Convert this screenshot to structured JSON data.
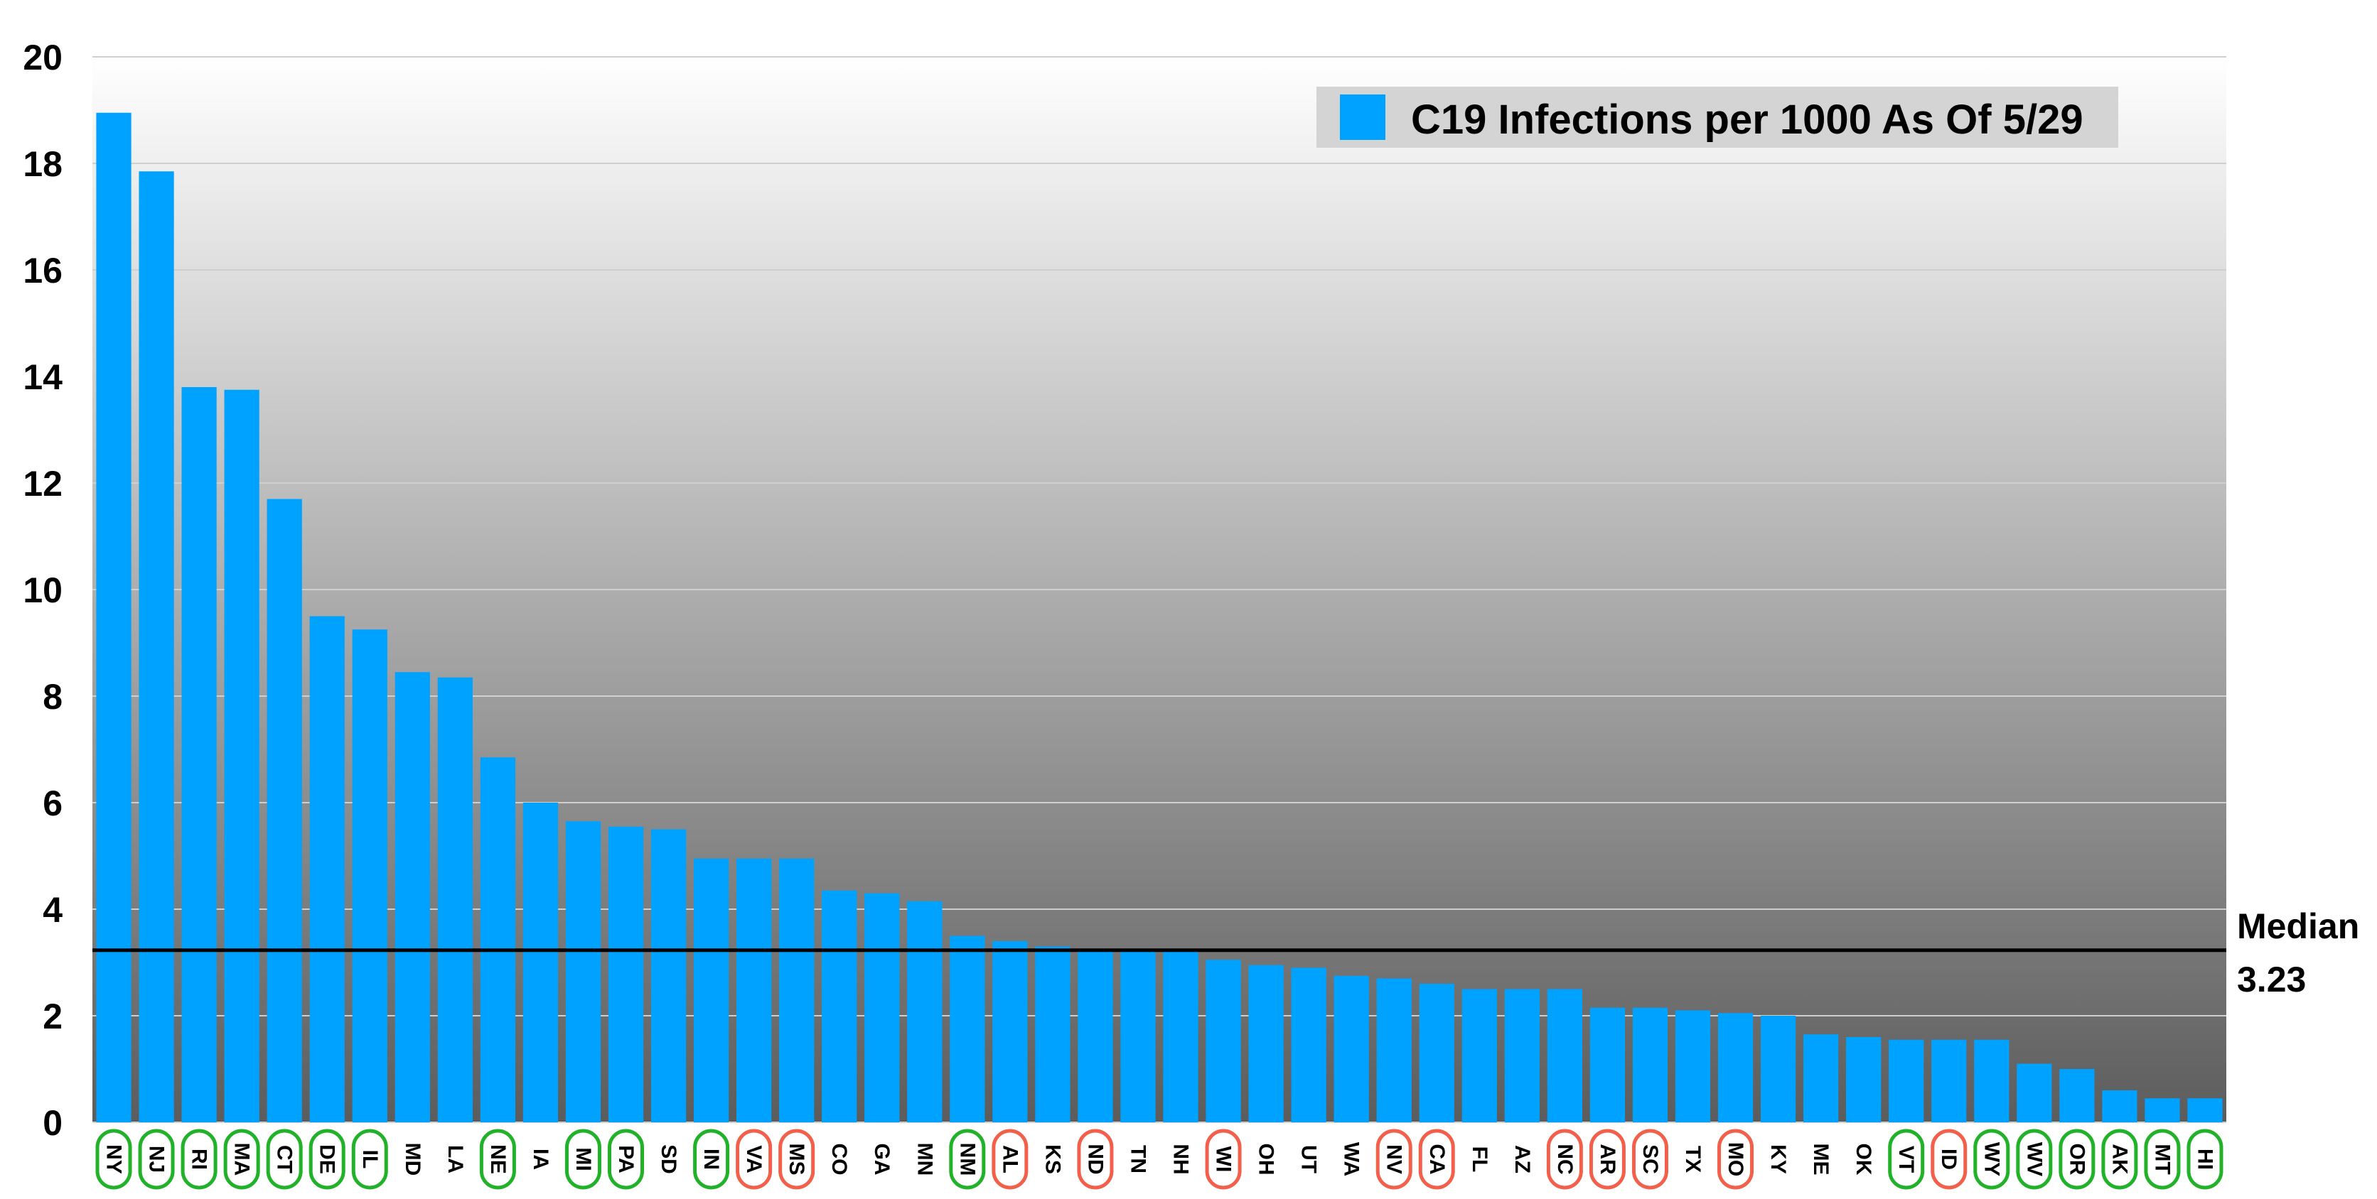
{
  "chart_data": {
    "type": "bar",
    "title": "",
    "xlabel": "",
    "ylabel": "",
    "ylim": [
      0,
      20
    ],
    "yticks": [
      0,
      2,
      4,
      6,
      8,
      10,
      12,
      14,
      16,
      18,
      20
    ],
    "grid": true,
    "legend": {
      "label": "C19 Infections per 1000 As Of 5/29",
      "placement": "top-right"
    },
    "bar_color": "#00A2FF",
    "colors": {
      "circle_green": "#22B22A",
      "circle_red": "#F2604B",
      "median_line": "#000000"
    },
    "median": {
      "label": "Median",
      "value_label": "3.23",
      "value": 3.23
    },
    "categories": [
      "NY",
      "NJ",
      "RI",
      "MA",
      "CT",
      "DE",
      "IL",
      "MD",
      "LA",
      "NE",
      "IA",
      "MI",
      "PA",
      "SD",
      "IN",
      "VA",
      "MS",
      "CO",
      "GA",
      "MN",
      "NM",
      "AL",
      "KS",
      "ND",
      "TN",
      "NH",
      "WI",
      "OH",
      "UT",
      "WA",
      "NV",
      "CA",
      "FL",
      "AZ",
      "NC",
      "AR",
      "SC",
      "TX",
      "MO",
      "KY",
      "ME",
      "OK",
      "VT",
      "ID",
      "WY",
      "WV",
      "OR",
      "AK",
      "MT",
      "HI"
    ],
    "values": [
      18.95,
      17.85,
      13.8,
      13.75,
      11.7,
      9.5,
      9.25,
      8.45,
      8.35,
      6.85,
      6.0,
      5.65,
      5.55,
      5.5,
      4.95,
      4.95,
      4.95,
      4.35,
      4.3,
      4.15,
      3.5,
      3.4,
      3.3,
      3.25,
      3.2,
      3.2,
      3.05,
      2.95,
      2.9,
      2.75,
      2.7,
      2.6,
      2.5,
      2.5,
      2.5,
      2.15,
      2.15,
      2.1,
      2.05,
      2.0,
      1.65,
      1.6,
      1.55,
      1.55,
      1.55,
      1.1,
      1.0,
      0.6,
      0.45,
      0.45
    ],
    "circles": [
      "green",
      "green",
      "green",
      "green",
      "green",
      "green",
      "green",
      "none",
      "none",
      "green",
      "none",
      "green",
      "green",
      "none",
      "green",
      "red",
      "red",
      "none",
      "none",
      "none",
      "green",
      "red",
      "none",
      "red",
      "none",
      "none",
      "red",
      "none",
      "none",
      "none",
      "red",
      "red",
      "none",
      "none",
      "red",
      "red",
      "red",
      "none",
      "red",
      "none",
      "none",
      "none",
      "green",
      "red",
      "green",
      "green",
      "green",
      "green",
      "green",
      "green"
    ]
  }
}
